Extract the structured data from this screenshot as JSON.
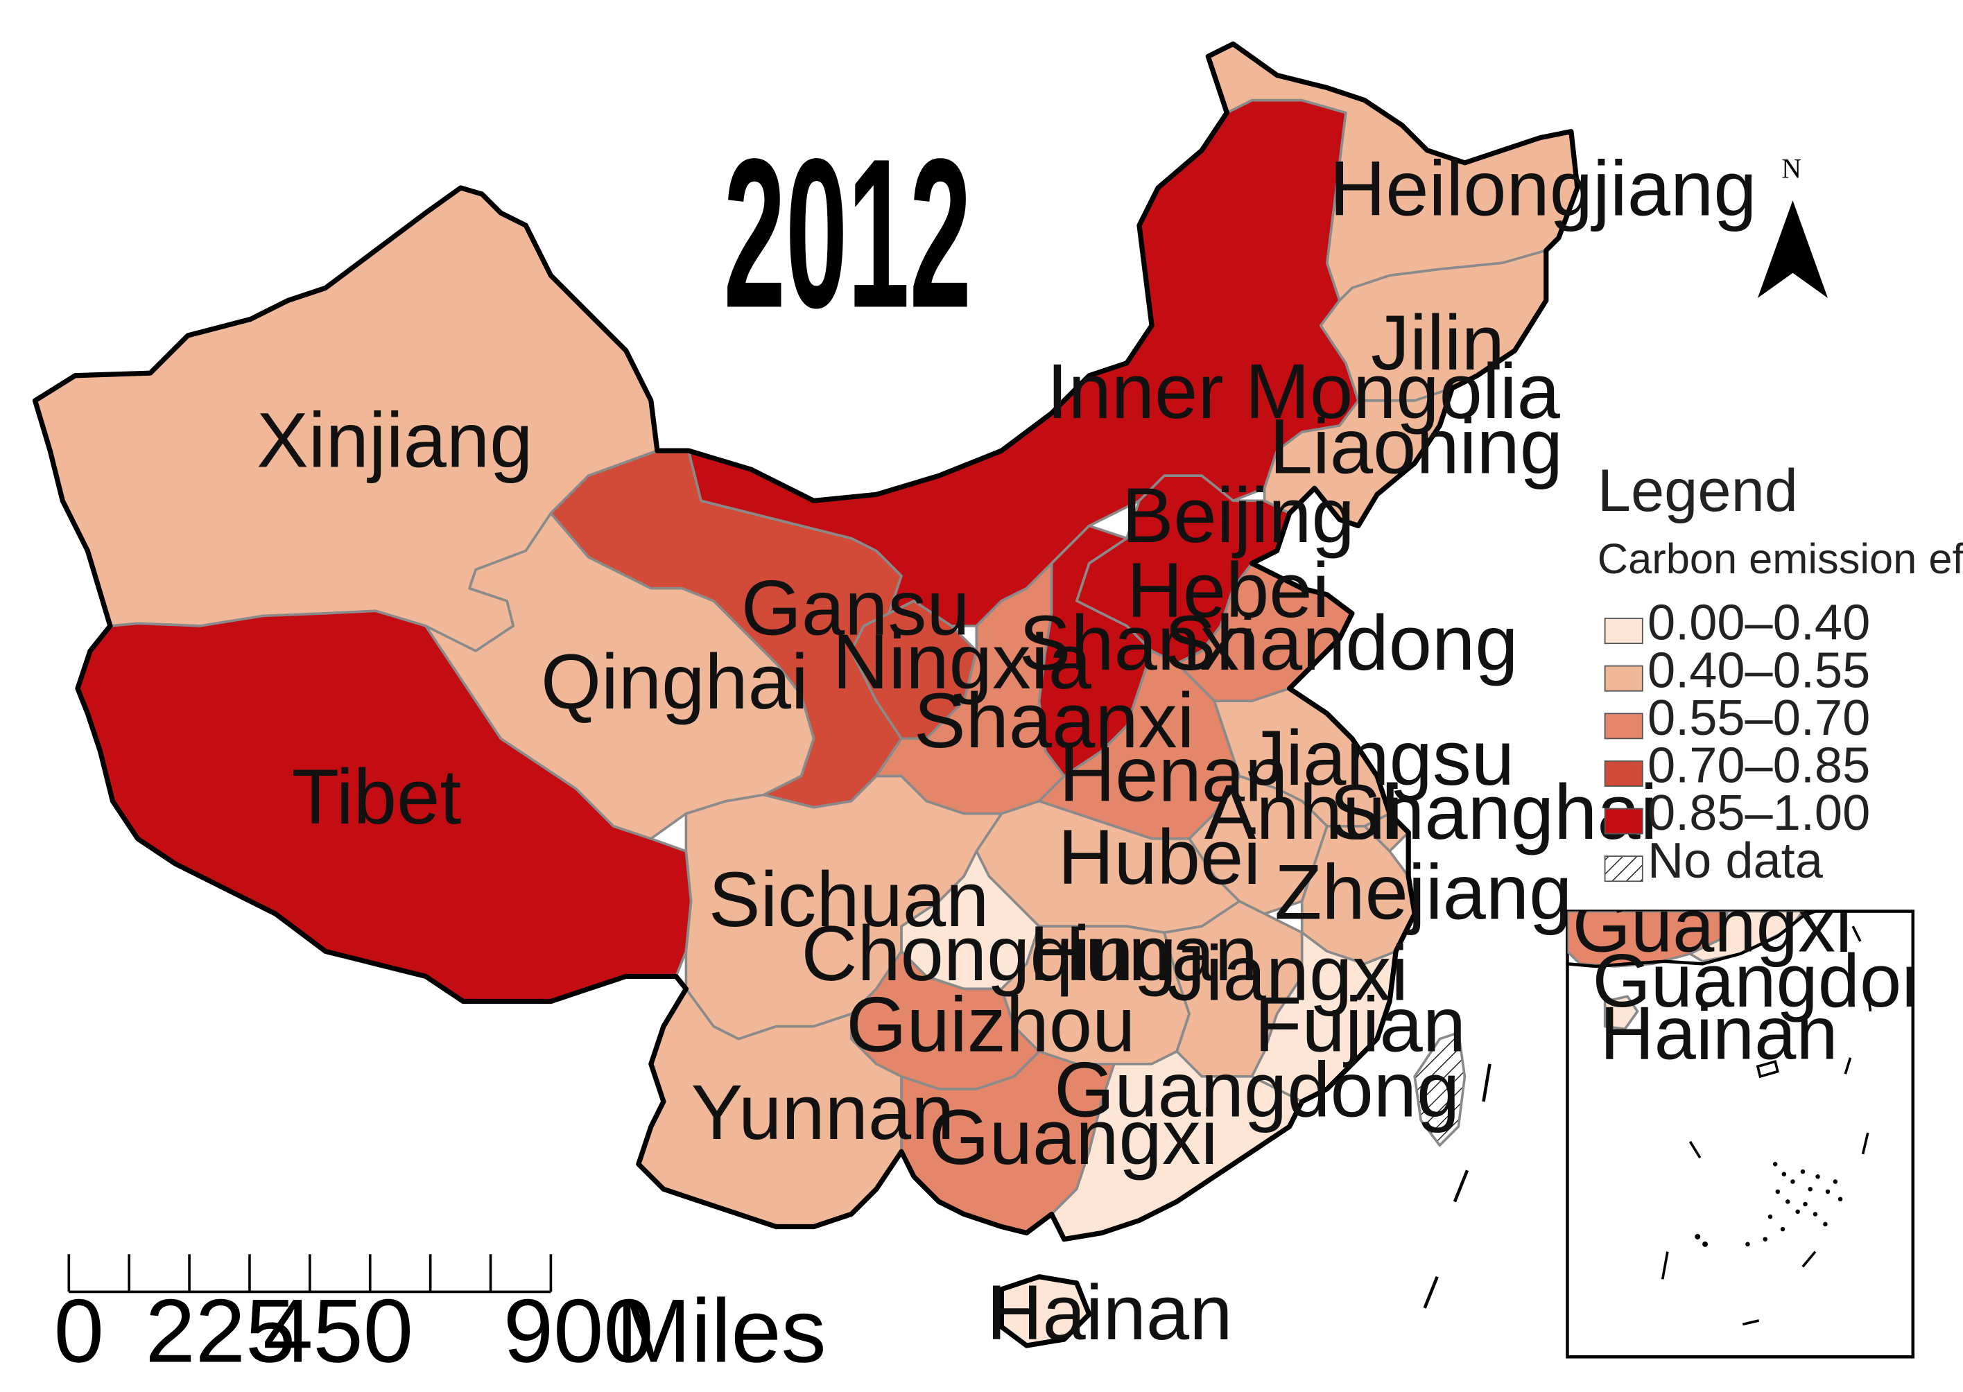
{
  "title": "2012",
  "colors": {
    "c0": "#fde6d6",
    "c1": "#f0b898",
    "c2": "#e3866a",
    "c3": "#d24a38",
    "c4": "#c40d12",
    "nodata": "#ffffff"
  },
  "legend": {
    "title": "Legend",
    "subtitle": "Carbon emission efficiency",
    "items": [
      {
        "label": "0.00–0.40",
        "color": "#fde6d6"
      },
      {
        "label": "0.40–0.55",
        "color": "#f0b898"
      },
      {
        "label": "0.55–0.70",
        "color": "#e3866a"
      },
      {
        "label": "0.70–0.85",
        "color": "#d24a38"
      },
      {
        "label": "0.85–1.00",
        "color": "#c40d12"
      },
      {
        "label": "No data",
        "color": "hatch"
      }
    ]
  },
  "provinces": {
    "xinjiang": {
      "label": "Xinjiang",
      "class": "0.40–0.55"
    },
    "tibet": {
      "label": "Tibet",
      "class": "0.85–1.00"
    },
    "qinghai": {
      "label": "Qinghai",
      "class": "0.40–0.55"
    },
    "gansu": {
      "label": "Gansu",
      "class": "0.70–0.85"
    },
    "ningxia": {
      "label": "Ningxia",
      "class": "0.70–0.85"
    },
    "inner_mongolia": {
      "label": "Inner Mongolia",
      "class": "0.85–1.00"
    },
    "heilongjiang": {
      "label": "Heilongjiang",
      "class": "0.40–0.55"
    },
    "jilin": {
      "label": "Jilin",
      "class": "0.40–0.55"
    },
    "liaoning": {
      "label": "Liaoning",
      "class": "0.40–0.55"
    },
    "beijing": {
      "label": "Beijing",
      "class": "0.85–1.00"
    },
    "hebei": {
      "label": "Hebei",
      "class": "0.85–1.00"
    },
    "shanxi": {
      "label": "Shanxi",
      "class": "0.85–1.00"
    },
    "shandong": {
      "label": "Shandong",
      "class": "0.55–0.70"
    },
    "shaanxi": {
      "label": "Shaanxi",
      "class": "0.55–0.70"
    },
    "henan": {
      "label": "Henan",
      "class": "0.55–0.70"
    },
    "jiangsu": {
      "label": "Jiangsu",
      "class": "0.40–0.55"
    },
    "anhui": {
      "label": "Anhui",
      "class": "0.40–0.55"
    },
    "shanghai": {
      "label": "Shanghai",
      "class": "0.40–0.55"
    },
    "hubei": {
      "label": "Hubei",
      "class": "0.40–0.55"
    },
    "zhejiang": {
      "label": "Zhejiang",
      "class": "0.40–0.55"
    },
    "sichuan": {
      "label": "Sichuan",
      "class": "0.40–0.55"
    },
    "chongqing": {
      "label": "Chongqing",
      "class": "0.00–0.40"
    },
    "hunan": {
      "label": "Hunan",
      "class": "0.40–0.55"
    },
    "jiangxi": {
      "label": "Jiangxi",
      "class": "0.40–0.55"
    },
    "fujian": {
      "label": "Fujian",
      "class": "0.00–0.40"
    },
    "guizhou": {
      "label": "Guizhou",
      "class": "0.55–0.70"
    },
    "yunnan": {
      "label": "Yunnan",
      "class": "0.40–0.55"
    },
    "guangxi": {
      "label": "Guangxi",
      "class": "0.55–0.70"
    },
    "guangdong": {
      "label": "Guangdong",
      "class": "0.00–0.40"
    },
    "hainan": {
      "label": "Hainan",
      "class": "0.00–0.40"
    },
    "taiwan": {
      "label": "",
      "class": "No data"
    }
  },
  "inset": {
    "labels": {
      "guangxi": "Guangxi",
      "guangdong": "Guangdong",
      "hainan": "Hainan"
    }
  },
  "north_arrow": {
    "label": "N"
  },
  "scale_bar": {
    "ticks": [
      "0",
      "225",
      "450",
      "900"
    ],
    "unit": "Miles"
  }
}
